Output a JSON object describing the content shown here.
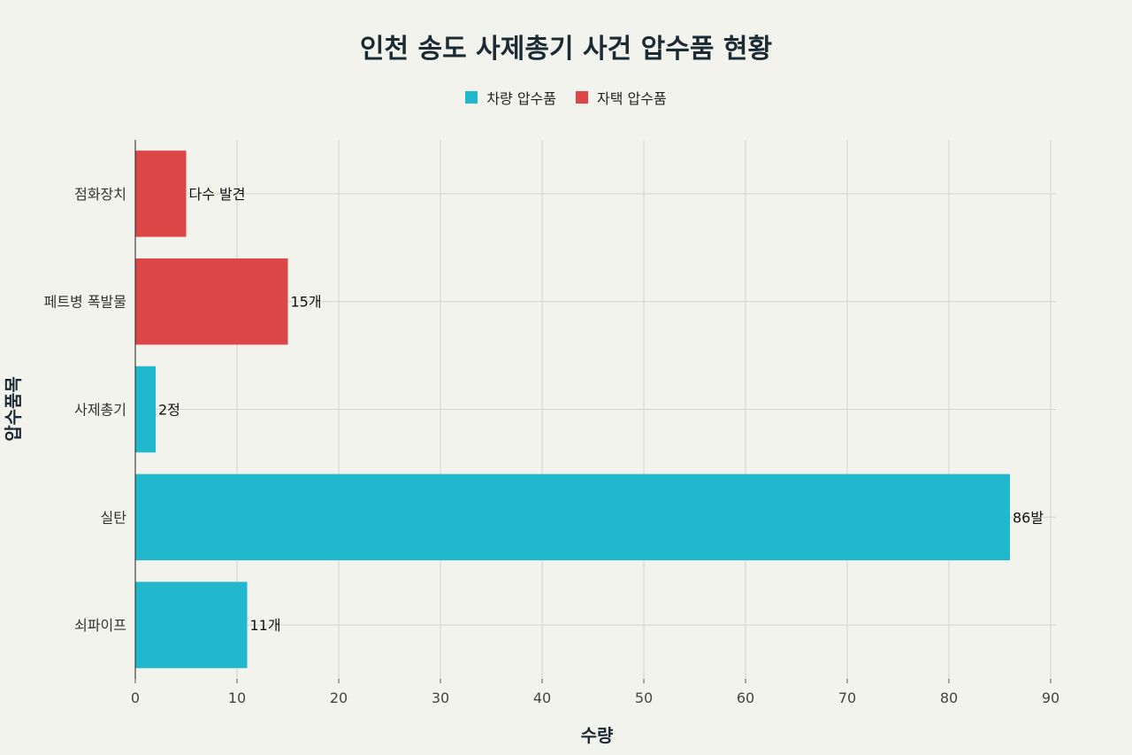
{
  "chart_data": {
    "type": "bar",
    "orientation": "horizontal",
    "title": "인천 송도 사제총기 사건 압수품 현황",
    "xlabel": "수량",
    "ylabel": "압수품목",
    "xlim": [
      0,
      90
    ],
    "xticks": [
      0,
      10,
      20,
      30,
      40,
      50,
      60,
      70,
      80,
      90
    ],
    "grid": true,
    "legend_position": "top-center",
    "legend": [
      {
        "name": "차량 압수품",
        "color": "#21b8cd"
      },
      {
        "name": "자택 압수품",
        "color": "#dc4646"
      }
    ],
    "categories": [
      "점화장치",
      "페트병 폭발물",
      "사제총기",
      "실탄",
      "쇠파이프"
    ],
    "bars": [
      {
        "category": "점화장치",
        "value": 5,
        "label": "다수 발견",
        "group": "자택 압수품"
      },
      {
        "category": "페트병 폭발물",
        "value": 15,
        "label": "15개",
        "group": "자택 압수품"
      },
      {
        "category": "사제총기",
        "value": 2,
        "label": "2정",
        "group": "차량 압수품"
      },
      {
        "category": "실탄",
        "value": 86,
        "label": "86발",
        "group": "차량 압수품"
      },
      {
        "category": "쇠파이프",
        "value": 11,
        "label": "11개",
        "group": "차량 압수품"
      }
    ]
  }
}
